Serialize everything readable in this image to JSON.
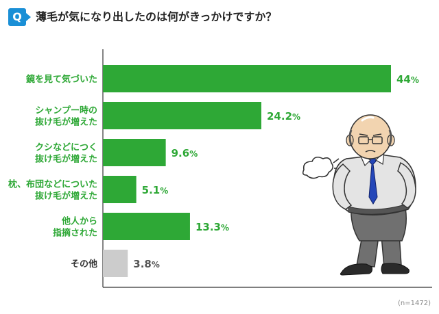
{
  "question": {
    "badge": "Q",
    "title": "薄毛が気になり出したのは何がきっかけですか？"
  },
  "note": "(n=1472)",
  "colors": {
    "accent": "#1a8fd6",
    "bar": "#2ea836",
    "bar_other": "#cccccc",
    "label_other": "#555555"
  },
  "chart_data": {
    "type": "bar",
    "orientation": "horizontal",
    "title": "薄毛が気になり出したのは何がきっかけですか？",
    "categories": [
      [
        "鏡を見て気づいた"
      ],
      [
        "シャンプー時の",
        "抜け毛が増えた"
      ],
      [
        "クシなどにつく",
        "抜け毛が増えた"
      ],
      [
        "枕、布団などについた",
        "抜け毛が増えた"
      ],
      [
        "他人から",
        "指摘された"
      ],
      [
        "その他"
      ]
    ],
    "values": [
      44,
      24.2,
      9.6,
      5.1,
      13.3,
      3.8
    ],
    "value_labels": [
      "44",
      "24.2",
      "9.6",
      "5.1",
      "13.3",
      "3.8"
    ],
    "unit": "%",
    "xlim": [
      0,
      44
    ],
    "grid": false,
    "legend": "none"
  }
}
